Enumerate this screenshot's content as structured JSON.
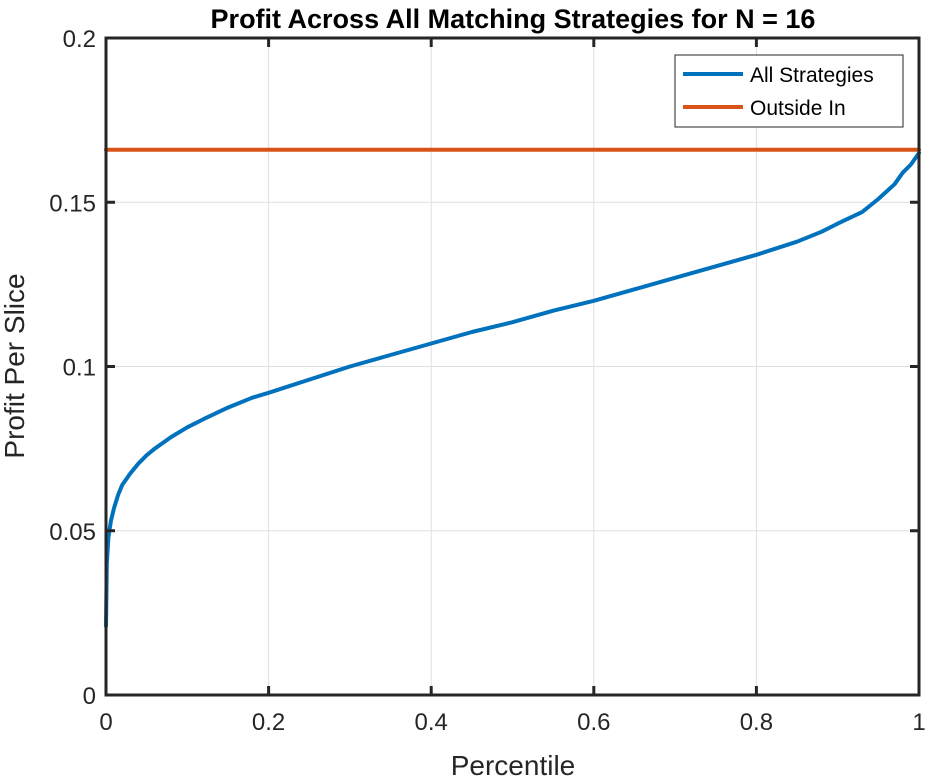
{
  "chart_data": {
    "type": "line",
    "title": "Profit Across All Matching Strategies for N = 16",
    "xlabel": "Percentile",
    "ylabel": "Profit Per Slice",
    "xlim": [
      0,
      1
    ],
    "ylim": [
      0,
      0.2
    ],
    "xticks": [
      0,
      0.2,
      0.4,
      0.6,
      0.8,
      1
    ],
    "xtick_labels": [
      "0",
      "0.2",
      "0.4",
      "0.6",
      "0.8",
      "1"
    ],
    "yticks": [
      0,
      0.05,
      0.1,
      0.15,
      0.2
    ],
    "ytick_labels": [
      "0",
      "0.05",
      "0.1",
      "0.15",
      "0.2"
    ],
    "grid": true,
    "legend_position": "top-right",
    "series": [
      {
        "name": "All Strategies",
        "color": "#0072BD",
        "x": [
          0,
          0.001,
          0.003,
          0.006,
          0.01,
          0.015,
          0.02,
          0.03,
          0.04,
          0.05,
          0.06,
          0.08,
          0.1,
          0.12,
          0.15,
          0.18,
          0.2,
          0.25,
          0.3,
          0.35,
          0.4,
          0.45,
          0.5,
          0.55,
          0.6,
          0.65,
          0.7,
          0.75,
          0.8,
          0.85,
          0.88,
          0.9,
          0.93,
          0.95,
          0.97,
          0.98,
          0.99,
          1.0
        ],
        "y": [
          0.021,
          0.04,
          0.048,
          0.053,
          0.057,
          0.061,
          0.064,
          0.0675,
          0.0705,
          0.073,
          0.075,
          0.0785,
          0.0815,
          0.084,
          0.0875,
          0.0905,
          0.092,
          0.096,
          0.1,
          0.1035,
          0.107,
          0.1105,
          0.1135,
          0.117,
          0.12,
          0.1235,
          0.127,
          0.1305,
          0.134,
          0.138,
          0.141,
          0.1435,
          0.147,
          0.151,
          0.1555,
          0.159,
          0.1615,
          0.165
        ]
      },
      {
        "name": "Outside In",
        "color": "#D95319",
        "x": [
          0,
          1
        ],
        "y": [
          0.166,
          0.166
        ]
      }
    ]
  }
}
